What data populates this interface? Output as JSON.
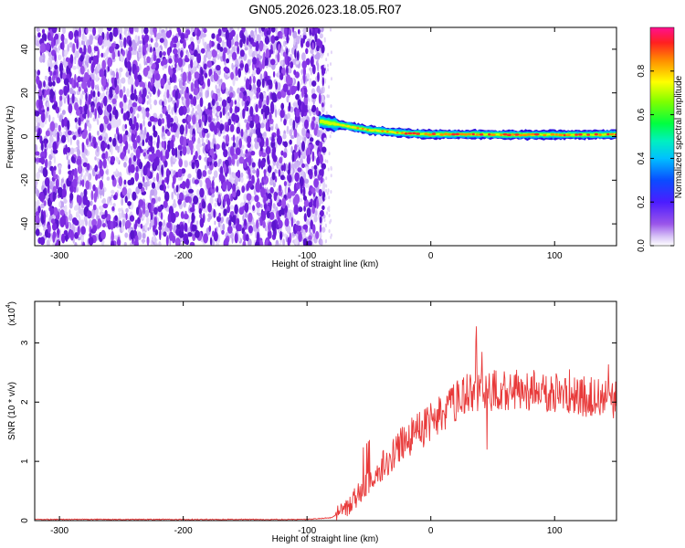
{
  "title": "GN05.2026.023.18.05.R07",
  "colors": {
    "spectrum_dots": "#7a28e0",
    "spectrum_dots_light": "#cdb2f5",
    "snr_line": "#e83a3a",
    "axis": "#000000"
  },
  "chart_data": [
    {
      "type": "heatmap",
      "xlabel": "Height of straight line (km)",
      "ylabel": "Frequency (Hz)",
      "xlim": [
        -320,
        150
      ],
      "ylim": [
        -50,
        50
      ],
      "x_ticks": [
        -300,
        -200,
        -100,
        0,
        100
      ],
      "y_ticks": [
        -40,
        -20,
        0,
        20,
        40
      ],
      "colorbar": {
        "label": "Normalized spectral amplitude",
        "range": [
          0,
          1
        ],
        "ticks": [
          0.0,
          0.2,
          0.4,
          0.6,
          0.8
        ],
        "tick_labels": [
          "0.0",
          "0.2",
          "0.4",
          "0.6",
          "0.8"
        ]
      },
      "noise_region_x": [
        -320,
        -86
      ],
      "signal_track": {
        "x": [
          -90,
          -80,
          -70,
          -60,
          -50,
          -40,
          -30,
          -20,
          -10,
          0,
          20,
          40,
          60,
          80,
          100,
          120,
          150
        ],
        "frequency": [
          7,
          6,
          5,
          4,
          3,
          2.5,
          2,
          1.5,
          1.2,
          1,
          1,
          1,
          0.8,
          0.8,
          0.8,
          0.8,
          1
        ]
      }
    },
    {
      "type": "line",
      "xlabel": "Height of straight line (km)",
      "ylabel": "SNR (10 * v/v)",
      "y_scale_label": "(x10",
      "y_scale_exponent": "4",
      "xlim": [
        -320,
        150
      ],
      "ylim": [
        0,
        3.7
      ],
      "x_ticks": [
        -300,
        -200,
        -100,
        0,
        100
      ],
      "y_ticks": [
        0,
        1,
        2,
        3
      ],
      "series": [
        {
          "name": "SNR",
          "x": [
            -320,
            -100,
            -80,
            -70,
            -60,
            -50,
            -40,
            -30,
            -20,
            -10,
            0,
            10,
            20,
            30,
            40,
            50,
            60,
            80,
            100,
            120,
            150
          ],
          "values": [
            0.02,
            0.02,
            0.05,
            0.2,
            0.4,
            0.65,
            0.9,
            1.15,
            1.35,
            1.5,
            1.65,
            1.8,
            2.0,
            2.15,
            2.2,
            2.2,
            2.2,
            2.2,
            2.15,
            2.1,
            2.05
          ]
        }
      ]
    }
  ]
}
